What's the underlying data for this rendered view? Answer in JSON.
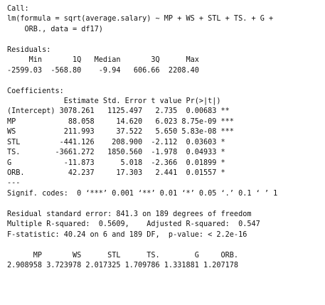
{
  "console": {
    "lines": [
      "Call:",
      "lm(formula = sqrt(average.salary) ~ MP + WS + STL + TS. + G +",
      "    ORB., data = df17)",
      "",
      "Residuals:",
      "     Min       1Q   Median       3Q      Max ",
      "-2599.03  -568.80    -9.94   606.66  2208.40 ",
      "",
      "Coefficients:",
      "             Estimate Std. Error t value Pr(>|t|)    ",
      "(Intercept) 3078.261   1125.497   2.735  0.00683 ** ",
      "MP            88.058     14.620   6.023 8.75e-09 ***",
      "WS           211.993     37.522   5.650 5.83e-08 ***",
      "STL         -441.126    208.900  -2.112  0.03603 *  ",
      "TS.        -3661.272   1850.560  -1.978  0.04933 *  ",
      "G            -11.873      5.018  -2.366  0.01899 *  ",
      "ORB.          42.237     17.303   2.441  0.01557 *  ",
      "---",
      "Signif. codes:  0 ‘***’ 0.001 ‘**’ 0.01 ‘*’ 0.05 ‘.’ 0.1 ‘ ’ 1",
      "",
      "Residual standard error: 841.3 on 189 degrees of freedom",
      "Multiple R-squared:  0.5609,    Adjusted R-squared:  0.547 ",
      "F-statistic: 40.24 on 6 and 189 DF,  p-value: < 2.2e-16",
      "",
      "      MP       WS      STL      TS.        G     ORB. ",
      "2.908958 3.723978 2.017325 1.709786 1.331881 1.207178 "
    ]
  }
}
